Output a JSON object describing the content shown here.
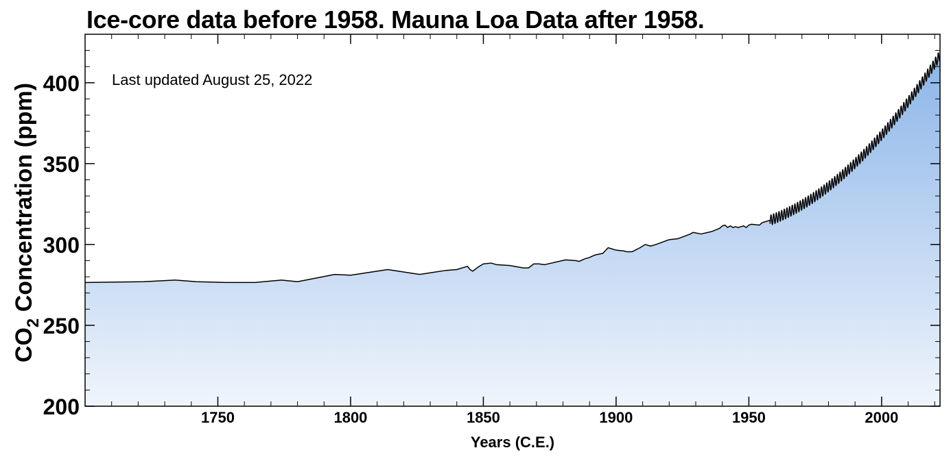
{
  "chart_data": {
    "type": "area",
    "title": "Ice-core data before 1958. Mauna Loa Data after 1958.",
    "annotation": "Last updated August 25, 2022",
    "xlabel": "Years (C.E.)",
    "ylabel_main": "CO",
    "ylabel_sub": "2",
    "ylabel_rest": " Concentration (ppm)",
    "xlim": [
      1700,
      2022
    ],
    "ylim": [
      200,
      430
    ],
    "x_ticks": [
      1750,
      1800,
      1850,
      1900,
      1950,
      2000
    ],
    "x_tick_labels": [
      "1750",
      "1800",
      "1850",
      "1900",
      "1950",
      "2000"
    ],
    "y_ticks": [
      200,
      250,
      300,
      350,
      400
    ],
    "y_tick_labels": [
      "200",
      "250",
      "300",
      "350",
      "400"
    ],
    "grid": false,
    "colors": {
      "line": "#000000",
      "fill_top": "#8ab4e8",
      "fill_bottom": "#f0f5fc"
    },
    "series": [
      {
        "values_x": [
          1700,
          1722,
          1734,
          1742,
          1753,
          1764,
          1774,
          1780,
          1794,
          1800,
          1814,
          1826,
          1836,
          1840,
          1844,
          1845,
          1846,
          1848,
          1850,
          1853,
          1855,
          1860,
          1865,
          1867,
          1869,
          1871,
          1873,
          1881,
          1885,
          1886,
          1888,
          1890,
          1892,
          1895,
          1897,
          1900,
          1903,
          1904,
          1906,
          1909,
          1911,
          1913,
          1915,
          1920,
          1923,
          1924,
          1928,
          1929,
          1932,
          1936,
          1939,
          1940,
          1941,
          1942,
          1943,
          1944,
          1945,
          1946,
          1947,
          1948,
          1949,
          1950,
          1951,
          1954,
          1955,
          1956,
          1957,
          1958
        ],
        "values_y": [
          276.5,
          277,
          278,
          277,
          276.5,
          276.5,
          278,
          277,
          281.5,
          281,
          284.5,
          281.5,
          284,
          284.5,
          286.5,
          284.5,
          283.5,
          286,
          288,
          288.5,
          287.5,
          287,
          285.5,
          285.5,
          288,
          288,
          287.5,
          290.5,
          290,
          289.5,
          291,
          292,
          293.5,
          294.5,
          298,
          296.5,
          296,
          295.5,
          295.5,
          298,
          300,
          299,
          300,
          303,
          303.5,
          304,
          306.5,
          307.5,
          306.5,
          308,
          310,
          311.5,
          312,
          310.5,
          311.5,
          310.5,
          311,
          310.5,
          311,
          311.5,
          310.5,
          312,
          312.5,
          312,
          313.5,
          314,
          314.5,
          315
        ]
      }
    ]
  }
}
